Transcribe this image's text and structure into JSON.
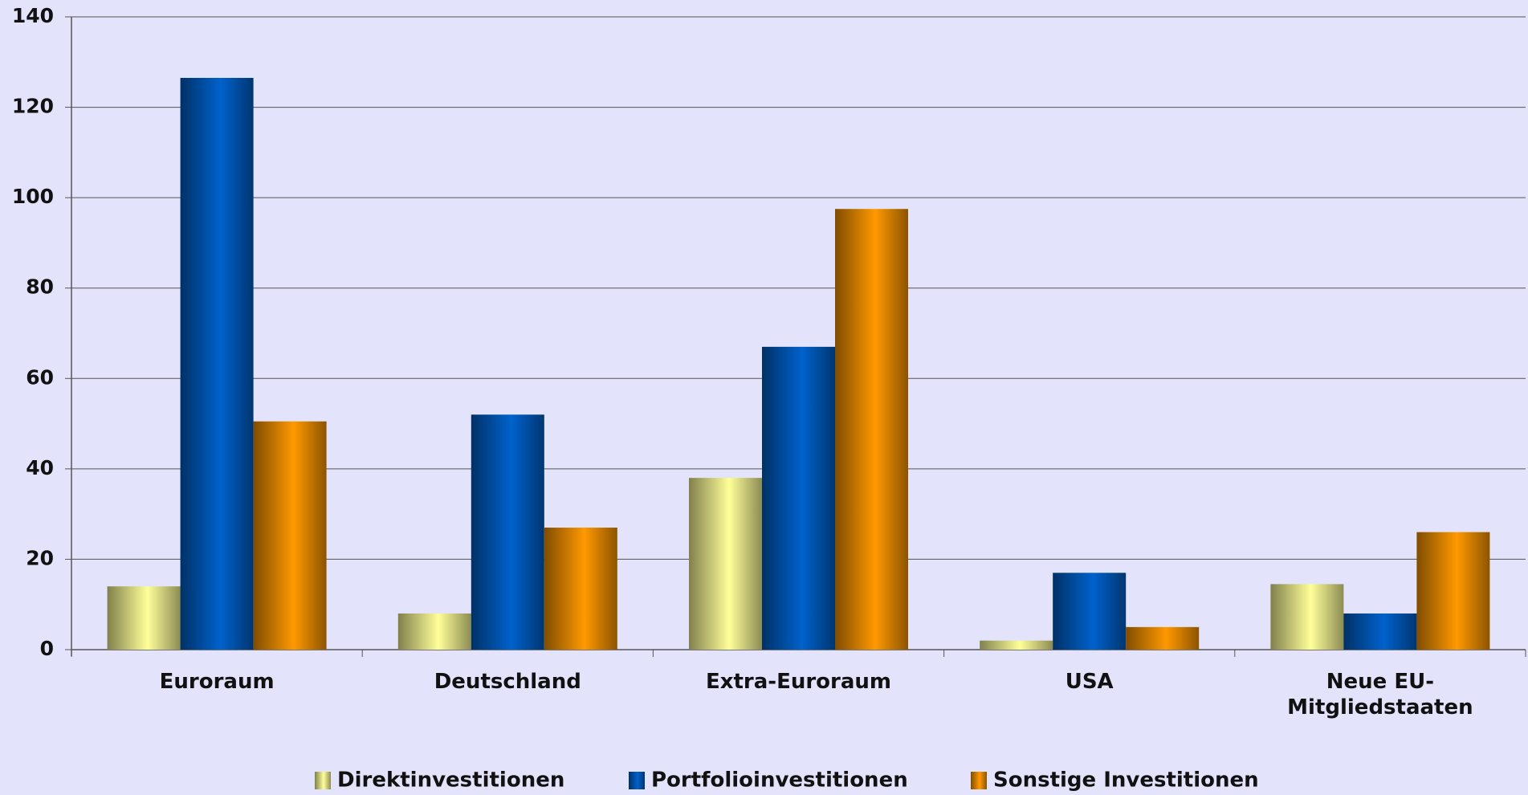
{
  "chart_data": {
    "type": "bar",
    "categories": [
      "Euroraum",
      "Deutschland",
      "Extra-Euroraum",
      "USA",
      "Neue EU-Mitgliedstaaten"
    ],
    "series": [
      {
        "name": "Direktinvestitionen",
        "color": "#ffff99",
        "values": [
          14,
          8,
          38,
          2,
          14.5
        ]
      },
      {
        "name": "Portfolioinvestitionen",
        "color": "#0062cc",
        "values": [
          126.5,
          52,
          67,
          17,
          8
        ]
      },
      {
        "name": "Sonstige Investitionen",
        "color": "#ff9900",
        "values": [
          50.5,
          27,
          97.5,
          5,
          26
        ]
      }
    ],
    "ylim": [
      0,
      140
    ],
    "yticks": [
      0,
      20,
      40,
      60,
      80,
      100,
      120,
      140
    ],
    "grid": true,
    "legend": "bottom"
  }
}
